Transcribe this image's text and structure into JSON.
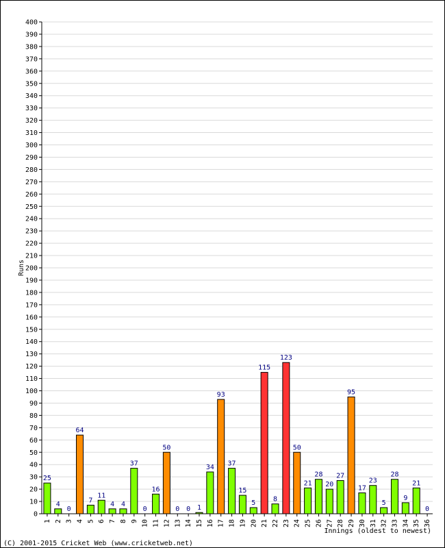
{
  "chart_data": {
    "type": "bar",
    "title": "",
    "xlabel": "Innings (oldest to newest)",
    "ylabel": "Runs",
    "ylim": [
      0,
      400
    ],
    "ytick_step": 10,
    "grid": true,
    "categories": [
      "1",
      "2",
      "3",
      "4",
      "5",
      "6",
      "7",
      "8",
      "9",
      "10",
      "11",
      "12",
      "13",
      "14",
      "15",
      "16",
      "17",
      "18",
      "19",
      "20",
      "21",
      "22",
      "23",
      "24",
      "25",
      "26",
      "27",
      "28",
      "29",
      "30",
      "31",
      "32",
      "33",
      "34",
      "35",
      "36"
    ],
    "values": [
      25,
      4,
      0,
      64,
      7,
      11,
      4,
      4,
      37,
      0,
      16,
      50,
      0,
      0,
      1,
      34,
      93,
      37,
      15,
      5,
      115,
      8,
      123,
      50,
      21,
      28,
      20,
      27,
      95,
      17,
      23,
      5,
      28,
      9,
      21,
      0
    ],
    "colors": {
      "under_50": "#80ff00",
      "fifty": "#ff8c00",
      "hundred": "#ff3333",
      "grid": "#d9d9d9",
      "label": "#000080"
    }
  },
  "footer": "(C) 2001-2015 Cricket Web (www.cricketweb.net)"
}
